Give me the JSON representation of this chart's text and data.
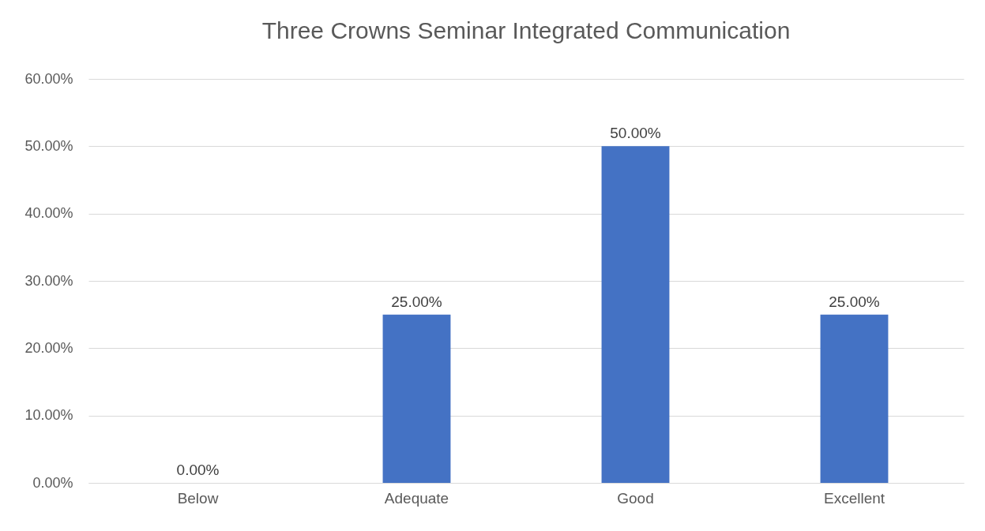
{
  "chart_data": {
    "type": "bar",
    "title": "Three Crowns Seminar Integrated Communication",
    "categories": [
      "Below",
      "Adequate",
      "Good",
      "Excellent"
    ],
    "values": [
      0,
      25,
      50,
      25
    ],
    "value_labels": [
      "0.00%",
      "25.00%",
      "50.00%",
      "25.00%"
    ],
    "color": "#4472c4",
    "ylim": [
      0,
      60
    ],
    "yticks": [
      {
        "value": 0,
        "label": "0.00%"
      },
      {
        "value": 10,
        "label": "10.00%"
      },
      {
        "value": 20,
        "label": "20.00%"
      },
      {
        "value": 30,
        "label": "30.00%"
      },
      {
        "value": 40,
        "label": "40.00%"
      },
      {
        "value": 50,
        "label": "50.00%"
      },
      {
        "value": 60,
        "label": "60.00%"
      }
    ],
    "grid": "y"
  }
}
